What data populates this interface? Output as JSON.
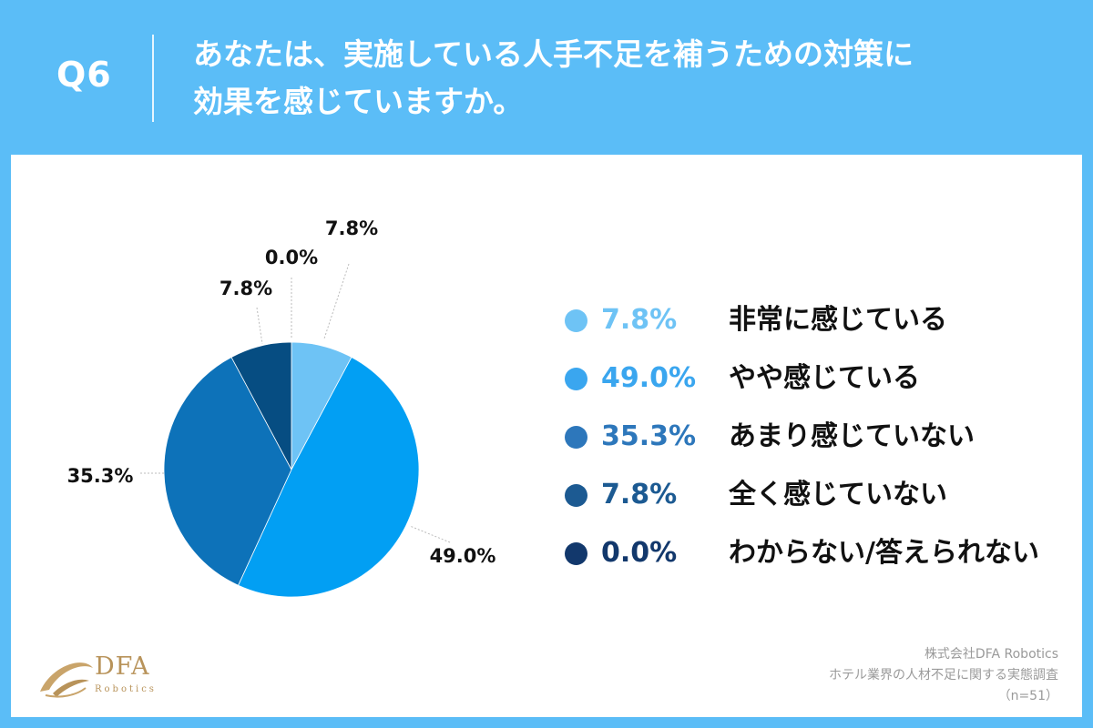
{
  "header": {
    "question_number": "Q6",
    "question_line1": "あなたは、実施している人手不足を補うための対策に",
    "question_line2": "効果を感じていますか。"
  },
  "chart_data": {
    "type": "pie",
    "categories": [
      "非常に感じている",
      "やや感じている",
      "あまり感じていない",
      "全く感じていない",
      "わからない/答えられない"
    ],
    "values": [
      7.8,
      49.0,
      35.3,
      7.8,
      0.0
    ],
    "value_labels": [
      "7.8%",
      "49.0%",
      "35.3%",
      "7.8%",
      "0.0%"
    ],
    "colors": [
      "#6ec3f5",
      "#029ff3",
      "#0d72b9",
      "#064d82",
      "#10305c"
    ],
    "legend_colors": [
      "#6ec3f5",
      "#3aa6ef",
      "#2d77bb",
      "#1c5a92",
      "#12386c"
    ],
    "start_angle_deg": 0,
    "direction": "clockwise",
    "legend_position": "right"
  },
  "footer": {
    "source_company": "株式会社DFA Robotics",
    "source_title": "ホテル業界の人材不足に関する実態調査",
    "sample_size": "（n=51）",
    "logo_text": "DFA",
    "logo_subtext": "Robotics"
  }
}
